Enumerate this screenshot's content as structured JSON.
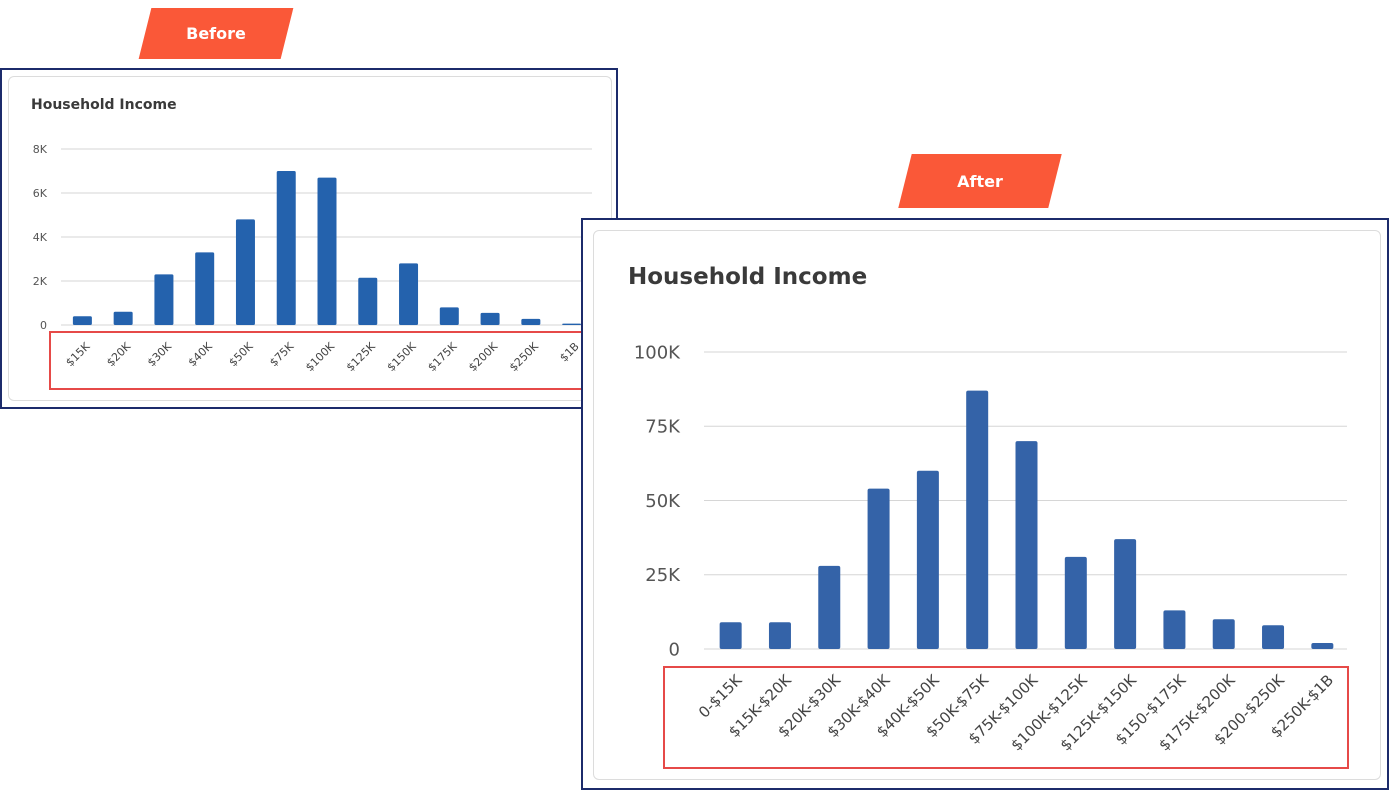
{
  "labels": {
    "before": "Before",
    "after": "After"
  },
  "colors": {
    "bar": "#2462ad",
    "bar_after": "#3463a8",
    "frame": "#1c2b6b",
    "tag": "#fa5838",
    "highlight": "#e64a48"
  },
  "chart_data": [
    {
      "type": "bar",
      "title": "Household Income",
      "ylim": [
        0,
        8000
      ],
      "yticks": [
        "0",
        "2K",
        "4K",
        "6K",
        "8K"
      ],
      "ytick_values": [
        0,
        2000,
        4000,
        6000,
        8000
      ],
      "categories": [
        "$15K",
        "$20K",
        "$30K",
        "$40K",
        "$50K",
        "$75K",
        "$100K",
        "$125K",
        "$150K",
        "$175K",
        "$200K",
        "$250K",
        "$1B"
      ],
      "values": [
        400,
        600,
        2300,
        3300,
        4800,
        7000,
        6700,
        2150,
        2800,
        800,
        550,
        280,
        60
      ],
      "grid": true
    },
    {
      "type": "bar",
      "title": "Household Income",
      "ylim": [
        0,
        100000
      ],
      "yticks": [
        "0",
        "25K",
        "50K",
        "75K",
        "100K"
      ],
      "ytick_values": [
        0,
        25000,
        50000,
        75000,
        100000
      ],
      "categories": [
        "0-$15K",
        "$15K-$20K",
        "$20K-$30K",
        "$30K-$40K",
        "$40K-$50K",
        "$50K-$75K",
        "$75K-$100K",
        "$100K-$125K",
        "$125K-$150K",
        "$150-$175K",
        "$175K-$200K",
        "$200-$250K",
        "$250K-$1B"
      ],
      "values": [
        9000,
        9000,
        28000,
        54000,
        60000,
        87000,
        70000,
        31000,
        37000,
        13000,
        10000,
        8000,
        2000
      ],
      "grid": true
    }
  ]
}
